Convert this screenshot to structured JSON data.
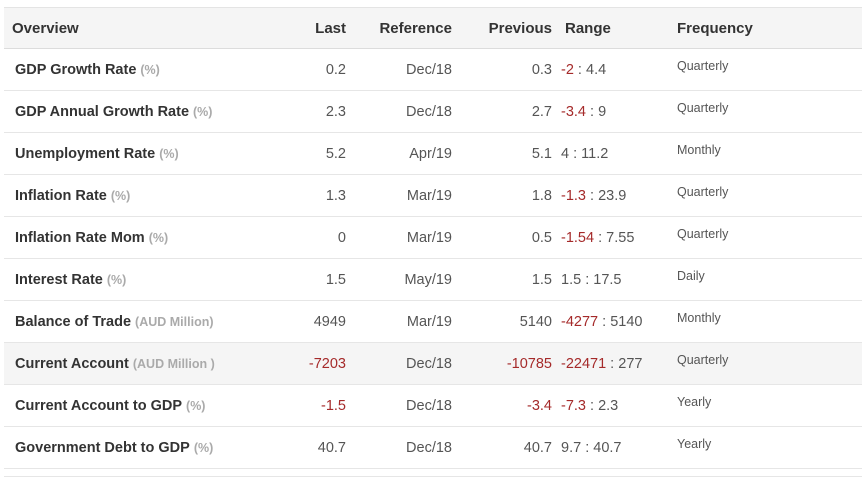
{
  "header": {
    "overview": "Overview",
    "last": "Last",
    "reference": "Reference",
    "previous": "Previous",
    "range": "Range",
    "frequency": "Frequency"
  },
  "colors": {
    "negative": "#a52a2a",
    "unit_gray": "#aaaaaa",
    "highlight_bg": "#f5f5f5"
  },
  "rows": [
    {
      "name": "GDP Growth Rate",
      "unit": "(%)",
      "last": "0.2",
      "reference": "Dec/18",
      "previous": "0.3",
      "range_lo": "-2",
      "range_hi": "4.4",
      "frequency": "Quarterly"
    },
    {
      "name": "GDP Annual Growth Rate",
      "unit": "(%)",
      "last": "2.3",
      "reference": "Dec/18",
      "previous": "2.7",
      "range_lo": "-3.4",
      "range_hi": "9",
      "frequency": "Quarterly"
    },
    {
      "name": "Unemployment Rate",
      "unit": "(%)",
      "last": "5.2",
      "reference": "Apr/19",
      "previous": "5.1",
      "range_lo": "4",
      "range_hi": "11.2",
      "frequency": "Monthly"
    },
    {
      "name": "Inflation Rate",
      "unit": "(%)",
      "last": "1.3",
      "reference": "Mar/19",
      "previous": "1.8",
      "range_lo": "-1.3",
      "range_hi": "23.9",
      "frequency": "Quarterly"
    },
    {
      "name": "Inflation Rate Mom",
      "unit": "(%)",
      "last": "0",
      "reference": "Mar/19",
      "previous": "0.5",
      "range_lo": "-1.54",
      "range_hi": "7.55",
      "frequency": "Quarterly"
    },
    {
      "name": "Interest Rate",
      "unit": "(%)",
      "last": "1.5",
      "reference": "May/19",
      "previous": "1.5",
      "range_lo": "1.5",
      "range_hi": "17.5",
      "frequency": "Daily"
    },
    {
      "name": "Balance of Trade",
      "unit": "(AUD Million)",
      "last": "4949",
      "reference": "Mar/19",
      "previous": "5140",
      "range_lo": "-4277",
      "range_hi": "5140",
      "frequency": "Monthly"
    },
    {
      "name": "Current Account",
      "unit": "(AUD Million )",
      "last": "-7203",
      "reference": "Dec/18",
      "previous": "-10785",
      "range_lo": "-22471",
      "range_hi": "277",
      "frequency": "Quarterly",
      "highlight": true
    },
    {
      "name": "Current Account to GDP",
      "unit": "(%)",
      "last": "-1.5",
      "reference": "Dec/18",
      "previous": "-3.4",
      "range_lo": "-7.3",
      "range_hi": "2.3",
      "frequency": "Yearly"
    },
    {
      "name": "Government Debt to GDP",
      "unit": "(%)",
      "last": "40.7",
      "reference": "Dec/18",
      "previous": "40.7",
      "range_lo": "9.7",
      "range_hi": "40.7",
      "frequency": "Yearly"
    }
  ]
}
